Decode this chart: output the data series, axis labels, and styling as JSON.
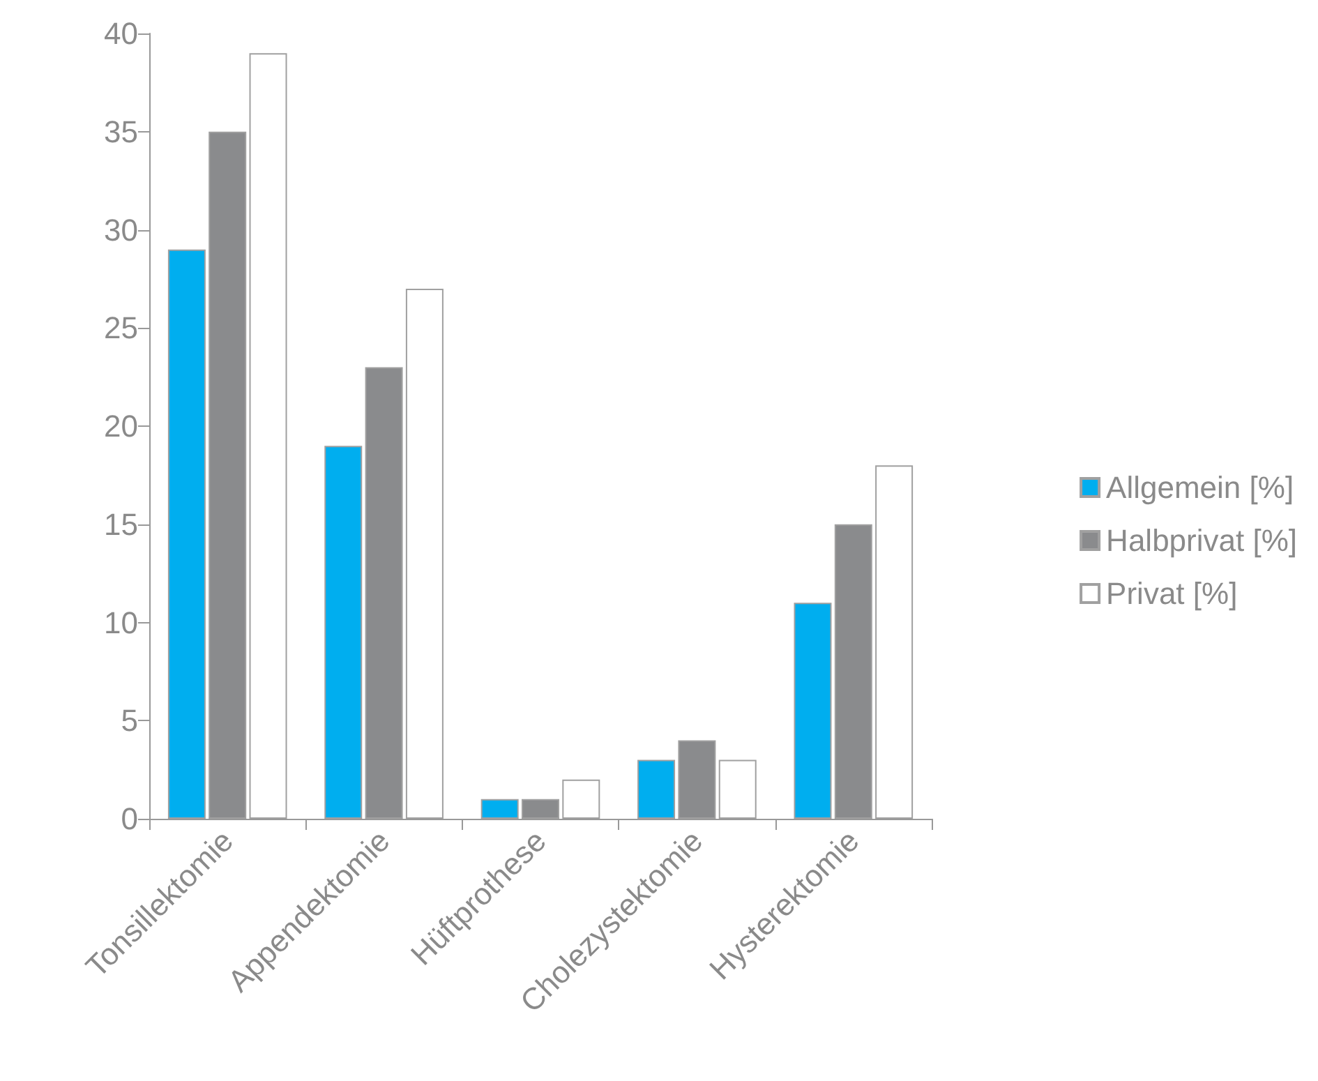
{
  "chart_data": {
    "type": "bar",
    "categories": [
      "Tonsillektomie",
      "Appendektomie",
      "Hüftprothese",
      "Cholezystektomie",
      "Hysterektomie"
    ],
    "series": [
      {
        "name": "Allgemein [%]",
        "color": "#00aeef",
        "values": [
          29,
          19,
          1,
          3,
          11
        ]
      },
      {
        "name": "Halbprivat [%]",
        "color": "#8a8b8d",
        "values": [
          35,
          23,
          1,
          4,
          15
        ]
      },
      {
        "name": "Privat [%]",
        "color": "#ffffff",
        "values": [
          39,
          27,
          2,
          3,
          18
        ]
      }
    ],
    "ylim": [
      0,
      40
    ],
    "yticks": [
      0,
      5,
      10,
      15,
      20,
      25,
      30,
      35,
      40
    ],
    "grid": false,
    "legend": "right"
  }
}
